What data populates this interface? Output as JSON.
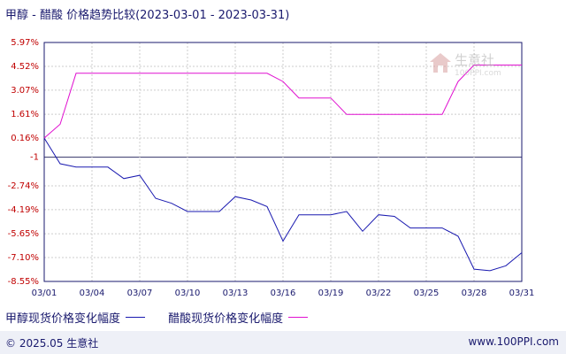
{
  "title": "甲醇 - 醋酸 价格趋势比较(2023-03-01 - 2023-03-31)",
  "watermark": {
    "name": "生意社",
    "url": "100PPI.com"
  },
  "chart_data": {
    "type": "line",
    "y_ticks": [
      5.97,
      4.52,
      3.07,
      1.61,
      0.16,
      -1,
      -2.74,
      -4.19,
      -5.65,
      -7.1,
      -8.55
    ],
    "y_tick_labels": [
      "5.97%",
      "4.52%",
      "3.07%",
      "1.61%",
      "0.16%",
      "-1",
      "-2.74%",
      "-4.19%",
      "-5.65%",
      "-7.10%",
      "-8.55%"
    ],
    "ylim": [
      -8.55,
      5.97
    ],
    "x_tick_labels": [
      "03/01",
      "03/04",
      "03/07",
      "03/10",
      "03/13",
      "03/16",
      "03/19",
      "03/22",
      "03/25",
      "03/28",
      "03/31"
    ],
    "x_tick_days": [
      1,
      4,
      7,
      10,
      13,
      16,
      19,
      22,
      25,
      28,
      31
    ],
    "xlim": [
      1,
      31
    ],
    "grid": true,
    "legend_position": "bottom-left",
    "series": [
      {
        "name": "甲醇现货价格变化幅度",
        "color": "#1a1ab0",
        "x": [
          1,
          2,
          3,
          4,
          5,
          6,
          7,
          8,
          9,
          10,
          11,
          12,
          13,
          14,
          15,
          16,
          17,
          18,
          19,
          20,
          21,
          22,
          23,
          24,
          25,
          26,
          27,
          28,
          29,
          30,
          31
        ],
        "y": [
          0.16,
          -1.4,
          -1.6,
          -1.6,
          -1.6,
          -2.3,
          -2.1,
          -3.5,
          -3.8,
          -4.3,
          -4.3,
          -4.3,
          -3.4,
          -3.6,
          -4.0,
          -6.1,
          -4.5,
          -4.5,
          -4.5,
          -4.3,
          -5.5,
          -4.5,
          -4.6,
          -5.3,
          -5.3,
          -5.3,
          -5.8,
          -7.8,
          -7.9,
          -7.6,
          -6.8
        ]
      },
      {
        "name": "醋酸现货价格变化幅度",
        "color": "#e010d0",
        "x": [
          1,
          2,
          3,
          4,
          5,
          6,
          7,
          8,
          9,
          10,
          11,
          12,
          13,
          14,
          15,
          16,
          17,
          18,
          19,
          20,
          21,
          22,
          23,
          24,
          25,
          26,
          27,
          28,
          29,
          30,
          31
        ],
        "y": [
          0.16,
          1.0,
          4.1,
          4.1,
          4.1,
          4.1,
          4.1,
          4.1,
          4.1,
          4.1,
          4.1,
          4.1,
          4.1,
          4.1,
          4.1,
          3.6,
          2.6,
          2.6,
          2.6,
          1.6,
          1.6,
          1.6,
          1.6,
          1.6,
          1.6,
          1.6,
          3.6,
          4.6,
          4.6,
          4.6,
          4.6
        ]
      }
    ]
  },
  "footer": {
    "copyright": "© 2025.05 生意社",
    "site": "www.100PPI.com"
  }
}
